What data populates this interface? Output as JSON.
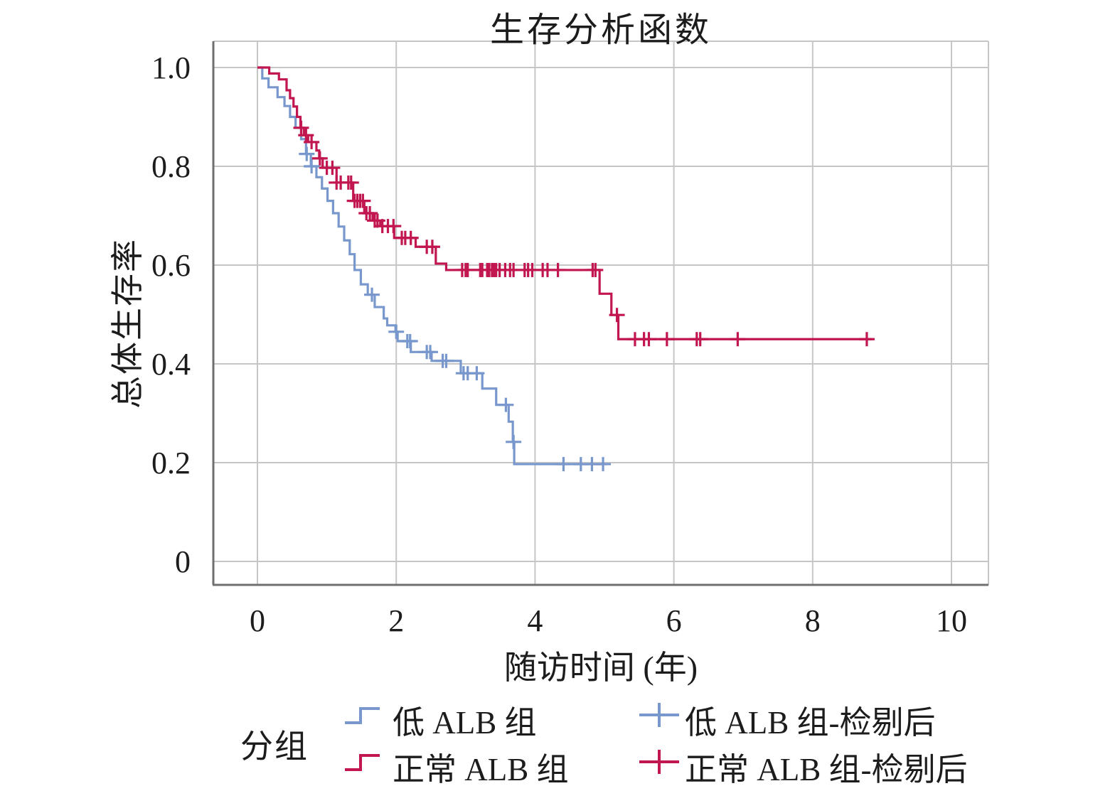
{
  "title_block": {
    "title": "生存分析函数"
  },
  "colors": {
    "low_alb": "#7897cd",
    "normal_alb": "#c1164f",
    "grid": "#c6c6c6",
    "axis": "#6f6f6f",
    "frame": "#c6c6c6",
    "text": "#1c1c1c"
  },
  "chart_data": {
    "type": "line",
    "subtype": "kaplan-meier-step-survival",
    "title": "生存分析函数",
    "xlabel": "随访时间 (年)",
    "ylabel": "总体生存率",
    "xlim": [
      0,
      10.5
    ],
    "ylim": [
      0,
      1.05
    ],
    "grid": true,
    "legend_position": "bottom",
    "x_ticks": {
      "values": [
        0,
        2,
        4,
        6,
        8,
        10
      ],
      "labels": [
        "0",
        "2",
        "4",
        "6",
        "8",
        "10"
      ]
    },
    "y_ticks": {
      "values": [
        1.0,
        0.8,
        0.6,
        0.4,
        0.2,
        0
      ],
      "labels": [
        "1.0",
        "0.8",
        "0.6",
        "0.4",
        "0.2",
        "0"
      ]
    },
    "series": [
      {
        "name": "低 ALB  组",
        "censored_name": "低 ALB 组-检剔后",
        "color": "#7897cd",
        "steps": [
          [
            0.0,
            1.0
          ],
          [
            0.07,
            0.978
          ],
          [
            0.16,
            0.96
          ],
          [
            0.29,
            0.94
          ],
          [
            0.39,
            0.922
          ],
          [
            0.47,
            0.9
          ],
          [
            0.55,
            0.878
          ],
          [
            0.63,
            0.855
          ],
          [
            0.7,
            0.825
          ],
          [
            0.77,
            0.8
          ],
          [
            0.85,
            0.778
          ],
          [
            0.93,
            0.755
          ],
          [
            1.01,
            0.73
          ],
          [
            1.09,
            0.705
          ],
          [
            1.17,
            0.678
          ],
          [
            1.25,
            0.65
          ],
          [
            1.33,
            0.622
          ],
          [
            1.4,
            0.59
          ],
          [
            1.49,
            0.561
          ],
          [
            1.59,
            0.54
          ],
          [
            1.69,
            0.515
          ],
          [
            1.82,
            0.492
          ],
          [
            1.87,
            0.478
          ],
          [
            1.99,
            0.465
          ],
          [
            2.02,
            0.446
          ],
          [
            2.21,
            0.424
          ],
          [
            2.51,
            0.406
          ],
          [
            2.93,
            0.381
          ],
          [
            3.24,
            0.35
          ],
          [
            3.44,
            0.317
          ],
          [
            3.62,
            0.283
          ],
          [
            3.68,
            0.242
          ],
          [
            3.7,
            0.197
          ]
        ],
        "end_t": 5.03,
        "censor_t": [
          0.71,
          0.78,
          1.65,
          2.0,
          2.16,
          2.2,
          2.44,
          2.49,
          2.67,
          2.72,
          2.97,
          3.03,
          3.16,
          3.58,
          3.69,
          4.41,
          4.66,
          4.82,
          4.98
        ]
      },
      {
        "name": "正常 ALB  组",
        "censored_name": "正常 ALB 组-检剔后",
        "color": "#c1164f",
        "steps": [
          [
            0.0,
            1.0
          ],
          [
            0.17,
            0.988
          ],
          [
            0.31,
            0.976
          ],
          [
            0.42,
            0.954
          ],
          [
            0.47,
            0.938
          ],
          [
            0.52,
            0.921
          ],
          [
            0.57,
            0.9
          ],
          [
            0.62,
            0.878
          ],
          [
            0.67,
            0.863
          ],
          [
            0.73,
            0.849
          ],
          [
            0.85,
            0.832
          ],
          [
            0.89,
            0.816
          ],
          [
            0.94,
            0.797
          ],
          [
            1.14,
            0.767
          ],
          [
            1.38,
            0.73
          ],
          [
            1.54,
            0.705
          ],
          [
            1.66,
            0.69
          ],
          [
            1.77,
            0.679
          ],
          [
            1.97,
            0.655
          ],
          [
            2.28,
            0.637
          ],
          [
            2.57,
            0.603
          ],
          [
            2.72,
            0.59
          ],
          [
            4.93,
            0.542
          ],
          [
            5.1,
            0.499
          ],
          [
            5.2,
            0.45
          ]
        ],
        "end_t": 8.85,
        "censor_t": [
          0.63,
          0.7,
          0.78,
          0.9,
          1.0,
          1.08,
          1.14,
          1.2,
          1.31,
          1.35,
          1.4,
          1.44,
          1.48,
          1.52,
          1.57,
          1.62,
          1.69,
          1.73,
          1.8,
          1.88,
          1.96,
          2.08,
          2.13,
          2.21,
          2.44,
          2.52,
          2.95,
          3.0,
          3.03,
          3.21,
          3.24,
          3.31,
          3.34,
          3.38,
          3.41,
          3.44,
          3.49,
          3.57,
          3.64,
          3.69,
          3.85,
          3.9,
          3.96,
          4.11,
          4.18,
          4.33,
          4.83,
          4.87,
          5.18,
          5.44,
          5.57,
          5.64,
          5.9,
          6.33,
          6.38,
          6.92,
          8.78
        ]
      }
    ]
  },
  "legend": {
    "title": "分组",
    "entries": [
      {
        "label": "低 ALB  组",
        "marker": "step",
        "color": "#7897cd"
      },
      {
        "label": "正常 ALB  组",
        "marker": "step",
        "color": "#c1164f"
      },
      {
        "label": "低 ALB 组-检剔后",
        "marker": "plus",
        "color": "#7897cd"
      },
      {
        "label": "正常 ALB 组-检剔后",
        "marker": "plus",
        "color": "#c1164f"
      }
    ]
  }
}
